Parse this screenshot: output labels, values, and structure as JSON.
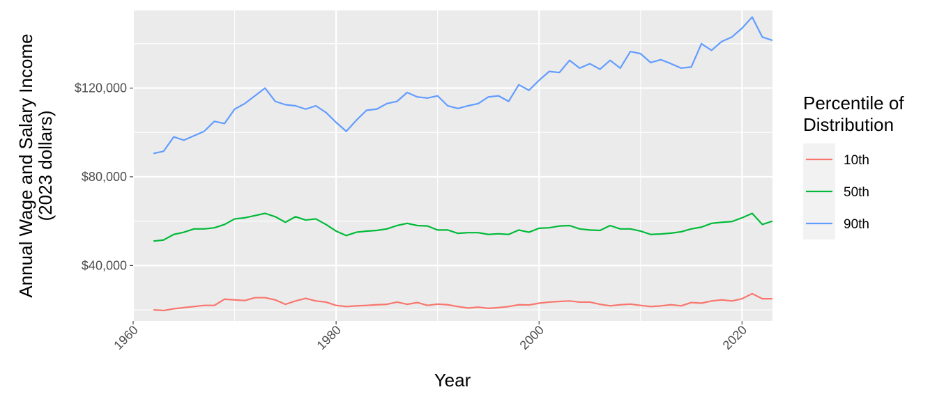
{
  "chart_data": {
    "type": "line",
    "xlabel": "Year",
    "ylabel_line1": "Annual Wage and Salary Income",
    "ylabel_line2": "(2023 dollars)",
    "xlim": [
      1960,
      2023
    ],
    "ylim": [
      15000,
      155000
    ],
    "x_ticks": [
      1960,
      1980,
      2000,
      2020
    ],
    "x_tick_labels": [
      "1960",
      "1980",
      "2000",
      "2020"
    ],
    "y_ticks": [
      40000,
      80000,
      120000
    ],
    "y_tick_labels": [
      "$40,000",
      "$80,000",
      "$120,000"
    ],
    "grid": true,
    "legend": {
      "title_line1": "Percentile of",
      "title_line2": "Distribution",
      "placement": "right"
    },
    "x": [
      1962,
      1963,
      1964,
      1965,
      1966,
      1967,
      1968,
      1969,
      1970,
      1971,
      1972,
      1973,
      1974,
      1975,
      1976,
      1977,
      1978,
      1979,
      1980,
      1981,
      1982,
      1983,
      1984,
      1985,
      1986,
      1987,
      1988,
      1989,
      1990,
      1991,
      1992,
      1993,
      1994,
      1995,
      1996,
      1997,
      1998,
      1999,
      2000,
      2001,
      2002,
      2003,
      2004,
      2005,
      2006,
      2007,
      2008,
      2009,
      2010,
      2011,
      2012,
      2013,
      2014,
      2015,
      2016,
      2017,
      2018,
      2019,
      2020,
      2021,
      2022,
      2023
    ],
    "series": [
      {
        "name": "10th",
        "color": "#F8766D",
        "values": [
          20000,
          19700,
          20500,
          21000,
          21500,
          22000,
          22000,
          24800,
          24500,
          24200,
          25500,
          25500,
          24500,
          22500,
          24000,
          25200,
          24000,
          23500,
          22000,
          21500,
          21800,
          22000,
          22300,
          22500,
          23500,
          22500,
          23300,
          22000,
          22600,
          22300,
          21500,
          20800,
          21200,
          20700,
          21000,
          21500,
          22300,
          22200,
          23000,
          23500,
          23800,
          24000,
          23500,
          23500,
          22500,
          21800,
          22300,
          22600,
          22000,
          21500,
          21800,
          22300,
          21800,
          23300,
          23000,
          24000,
          24500,
          24000,
          25000,
          27300,
          25000,
          25000
        ]
      },
      {
        "name": "50th",
        "color": "#00BA38",
        "values": [
          51000,
          51500,
          54000,
          55000,
          56500,
          56500,
          57000,
          58500,
          61000,
          61500,
          62500,
          63500,
          62000,
          59500,
          62000,
          60500,
          61000,
          58500,
          55500,
          53500,
          55000,
          55500,
          55800,
          56500,
          58000,
          59000,
          58000,
          57800,
          56000,
          56000,
          54500,
          54800,
          54800,
          54000,
          54300,
          54000,
          56000,
          55000,
          56800,
          57000,
          57800,
          58000,
          56500,
          56000,
          55800,
          58000,
          56500,
          56500,
          55500,
          54000,
          54200,
          54600,
          55200,
          56500,
          57300,
          59000,
          59500,
          59800,
          61500,
          63500,
          58500,
          60000
        ]
      },
      {
        "name": "90th",
        "color": "#619CFF",
        "values": [
          90500,
          91500,
          98000,
          96500,
          98500,
          100500,
          105000,
          104000,
          110500,
          113000,
          116500,
          120000,
          114000,
          112500,
          112000,
          110500,
          112000,
          109000,
          104500,
          100500,
          105500,
          110000,
          110500,
          113000,
          114000,
          118000,
          116000,
          115500,
          116500,
          112000,
          110800,
          112000,
          113000,
          116000,
          116500,
          114000,
          121500,
          119000,
          123500,
          127500,
          127000,
          132500,
          129000,
          131000,
          128500,
          132500,
          129000,
          136500,
          135500,
          131500,
          132800,
          131000,
          129000,
          129500,
          140000,
          137000,
          141000,
          143000,
          147000,
          152000,
          143000,
          141500
        ]
      }
    ]
  }
}
